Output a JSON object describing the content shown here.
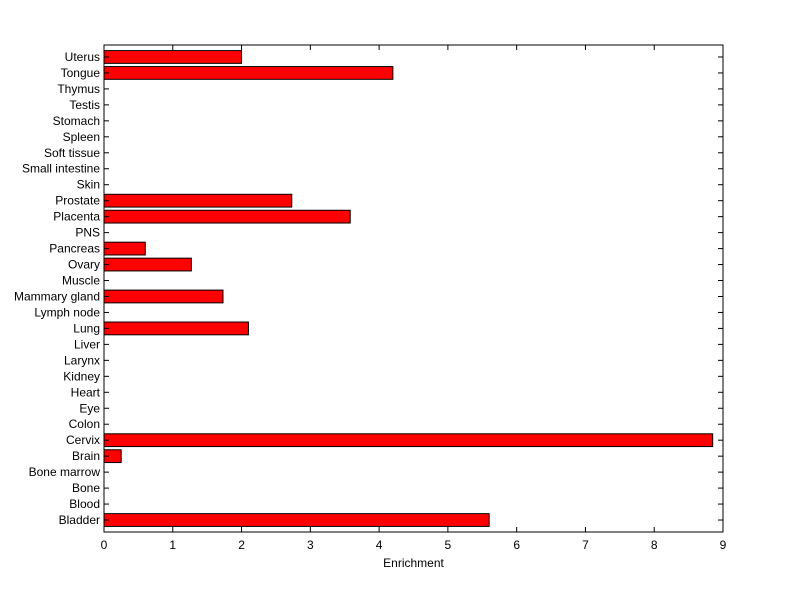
{
  "chart_data": {
    "type": "bar",
    "orientation": "horizontal",
    "title": "",
    "xlabel": "Enrichment",
    "ylabel": "",
    "xlim": [
      0,
      9
    ],
    "xticks": [
      "0",
      "1",
      "2",
      "3",
      "4",
      "5",
      "6",
      "7",
      "8",
      "9"
    ],
    "grid": false,
    "bar_color": "#ff0000",
    "bar_edge_color": "#000000",
    "categories": [
      "Bladder",
      "Blood",
      "Bone",
      "Bone marrow",
      "Brain",
      "Cervix",
      "Colon",
      "Eye",
      "Heart",
      "Kidney",
      "Larynx",
      "Liver",
      "Lung",
      "Lymph node",
      "Mammary gland",
      "Muscle",
      "Ovary",
      "Pancreas",
      "PNS",
      "Placenta",
      "Prostate",
      "Skin",
      "Small intestine",
      "Soft tissue",
      "Spleen",
      "Stomach",
      "Testis",
      "Thymus",
      "Tongue",
      "Uterus"
    ],
    "values": [
      5.6,
      0,
      0,
      0,
      0.25,
      8.85,
      0,
      0,
      0,
      0,
      0,
      0,
      2.1,
      0,
      1.73,
      0,
      1.27,
      0.6,
      0,
      3.58,
      2.73,
      0,
      0,
      0,
      0,
      0,
      0,
      0,
      4.2,
      2.0
    ]
  }
}
